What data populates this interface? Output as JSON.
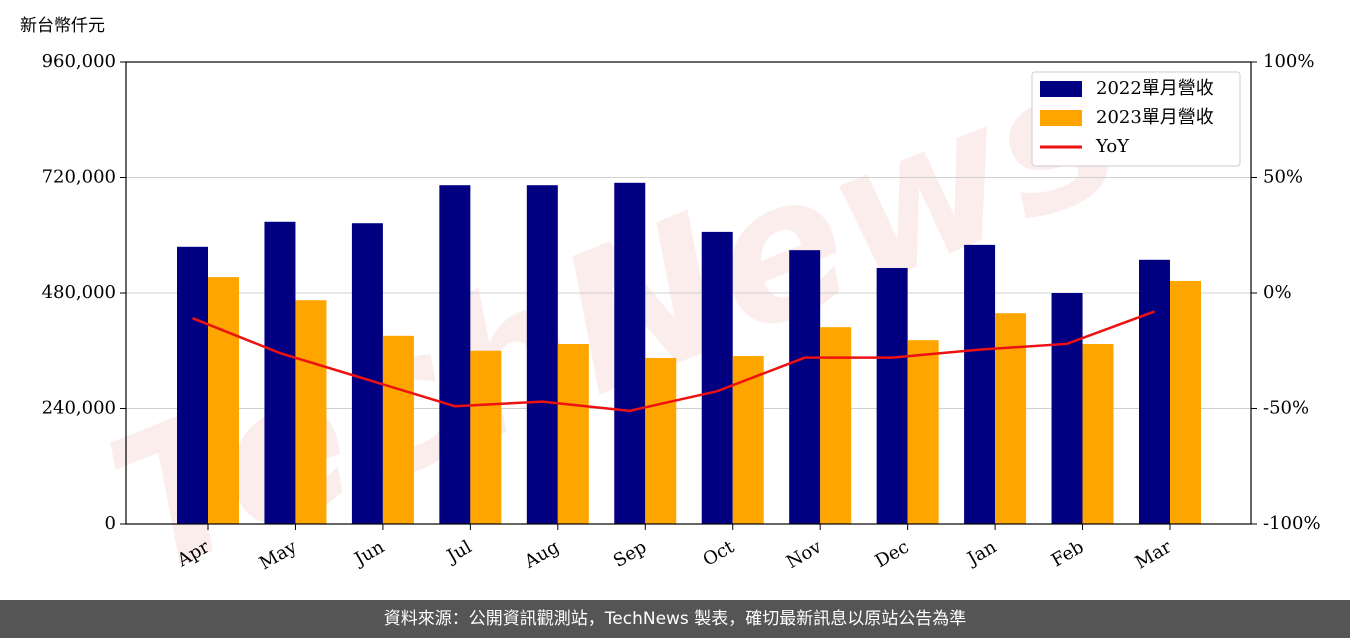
{
  "chart_data": {
    "type": "bar-line",
    "y_axis_label": "新台幣仟元",
    "watermark": "TechNews",
    "categories": [
      "Apr",
      "May",
      "Jun",
      "Jul",
      "Aug",
      "Sep",
      "Oct",
      "Nov",
      "Dec",
      "Jan",
      "Feb",
      "Mar"
    ],
    "series": [
      {
        "name": "2022單月營收",
        "type": "bar",
        "color": "#000080",
        "values": [
          576000,
          628000,
          625000,
          704000,
          704000,
          709000,
          607000,
          569000,
          532000,
          580000,
          480000,
          549000
        ]
      },
      {
        "name": "2023單月營收",
        "type": "bar",
        "color": "#ffa500",
        "values": [
          513000,
          465000,
          391000,
          360000,
          374000,
          345000,
          349000,
          409000,
          382000,
          438000,
          374000,
          505000
        ]
      },
      {
        "name": "YoY",
        "type": "line",
        "axis": "y2",
        "color": "#ee1111",
        "values": [
          -10.9,
          -26,
          -37.5,
          -49,
          -47,
          -51,
          -42.5,
          -28,
          -28,
          -24.5,
          -22,
          -8
        ]
      }
    ],
    "ylim": [
      0,
      960000
    ],
    "yticks": [
      0,
      {
        "value": 240000,
        "label": "240,000"
      },
      {
        "value": 480000,
        "label": "480,000"
      },
      {
        "value": 720000,
        "label": "720,000"
      },
      {
        "value": 960000,
        "label": "960,000"
      }
    ],
    "y2lim": [
      -100,
      100
    ],
    "y2ticks": [
      {
        "value": -100,
        "label": "-100%"
      },
      {
        "value": -50,
        "label": "-50%"
      },
      {
        "value": 0,
        "label": "0%"
      },
      {
        "value": 50,
        "label": "50%"
      },
      {
        "value": 100,
        "label": "100%"
      }
    ],
    "grid": true,
    "legend": "upper right",
    "footer": "資料來源：公開資訊觀測站，TechNews 製表，確切最新訊息以原站公告為準"
  }
}
